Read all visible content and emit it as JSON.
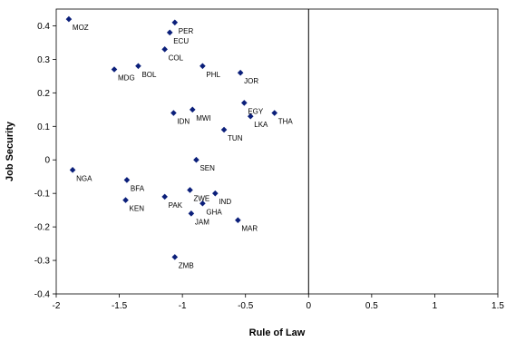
{
  "chart_data": {
    "type": "scatter",
    "title": "",
    "xlabel": "Rule of Law",
    "ylabel": "Job Security",
    "xlim": [
      -2,
      1.5
    ],
    "ylim": [
      -0.4,
      0.45
    ],
    "xticks": [
      -2,
      -1.5,
      -1,
      -0.5,
      0,
      0.5,
      1,
      1.5
    ],
    "yticks": [
      -0.4,
      -0.3,
      -0.2,
      -0.1,
      0,
      0.1,
      0.2,
      0.3,
      0.4
    ],
    "xtick_labels": [
      "-2",
      "-1.5",
      "-1",
      "-0.5",
      "0",
      "0.5",
      "1",
      "1.5"
    ],
    "ytick_labels": [
      "-0.4",
      "-0.3",
      "-0.2",
      "-0.1",
      "0",
      "0.1",
      "0.2",
      "0.3",
      "0.4"
    ],
    "grid": false,
    "reference_line_x": 0,
    "marker_color": "#0b1f7a",
    "points": [
      {
        "label": "MOZ",
        "x": -1.9,
        "y": 0.42
      },
      {
        "label": "PER",
        "x": -1.06,
        "y": 0.41
      },
      {
        "label": "ECU",
        "x": -1.1,
        "y": 0.38
      },
      {
        "label": "COL",
        "x": -1.14,
        "y": 0.33
      },
      {
        "label": "BOL",
        "x": -1.35,
        "y": 0.28
      },
      {
        "label": "MDG",
        "x": -1.54,
        "y": 0.27
      },
      {
        "label": "PHL",
        "x": -0.84,
        "y": 0.28
      },
      {
        "label": "JOR",
        "x": -0.54,
        "y": 0.26
      },
      {
        "label": "EGY",
        "x": -0.51,
        "y": 0.17
      },
      {
        "label": "LKA",
        "x": -0.46,
        "y": 0.13
      },
      {
        "label": "THA",
        "x": -0.27,
        "y": 0.14
      },
      {
        "label": "IDN",
        "x": -1.07,
        "y": 0.14
      },
      {
        "label": "MWI",
        "x": -0.92,
        "y": 0.15
      },
      {
        "label": "TUN",
        "x": -0.67,
        "y": 0.09
      },
      {
        "label": "SEN",
        "x": -0.89,
        "y": 0.0
      },
      {
        "label": "NGA",
        "x": -1.87,
        "y": -0.03
      },
      {
        "label": "BFA",
        "x": -1.44,
        "y": -0.06
      },
      {
        "label": "KEN",
        "x": -1.45,
        "y": -0.12
      },
      {
        "label": "PAK",
        "x": -1.14,
        "y": -0.11
      },
      {
        "label": "ZWE",
        "x": -0.94,
        "y": -0.09
      },
      {
        "label": "IND",
        "x": -0.74,
        "y": -0.1
      },
      {
        "label": "GHA",
        "x": -0.84,
        "y": -0.13
      },
      {
        "label": "JAM",
        "x": -0.93,
        "y": -0.16
      },
      {
        "label": "MAR",
        "x": -0.56,
        "y": -0.18
      },
      {
        "label": "ZMB",
        "x": -1.06,
        "y": -0.29
      }
    ]
  }
}
